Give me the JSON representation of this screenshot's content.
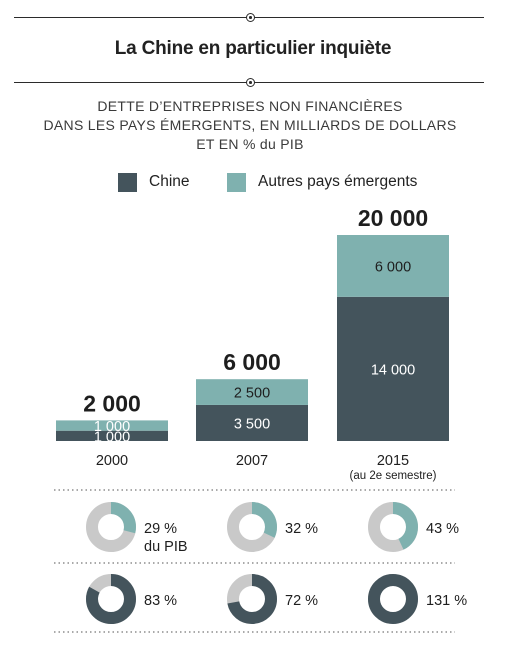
{
  "title": "La Chine en particulier inquiète",
  "subtitle_lines": [
    "DETTE D’ENTREPRISES NON FINANCIÈRES",
    "DANS LES PAYS ÉMERGENTS, EN MILLIARDS DE DOLLARS",
    "ET EN % du PIB"
  ],
  "colors": {
    "chine": "#44545c",
    "autres": "#7fb1af",
    "ring_bg": "#c9c9c9",
    "text": "#1e1e1e"
  },
  "chart_data": {
    "type": "bar",
    "stacked": true,
    "categories": [
      "2000",
      "2007",
      "2015"
    ],
    "category_notes": [
      "",
      "",
      "(au 2e semestre)"
    ],
    "series": [
      {
        "name": "Chine",
        "values": [
          1000,
          3500,
          14000
        ],
        "labels": [
          "1 000",
          "3 500",
          "14 000"
        ]
      },
      {
        "name": "Autres pays émergents",
        "values": [
          1000,
          2500,
          6000
        ],
        "labels": [
          "1 000",
          "2 500",
          "6 000"
        ]
      }
    ],
    "totals": [
      2000,
      6000,
      20000
    ],
    "total_labels": [
      "2 000",
      "6 000",
      "20 000"
    ],
    "ylim": [
      0,
      20000
    ],
    "legend": "top",
    "grid": false,
    "pib_rows": [
      {
        "series": "Autres pays émergents",
        "values": [
          29,
          32,
          43
        ],
        "labels": [
          "29 %",
          "32 %",
          "43 %"
        ],
        "note": "du PIB"
      },
      {
        "series": "Chine",
        "values": [
          83,
          72,
          131
        ],
        "labels": [
          "83 %",
          "72 %",
          "131 %"
        ]
      }
    ]
  }
}
